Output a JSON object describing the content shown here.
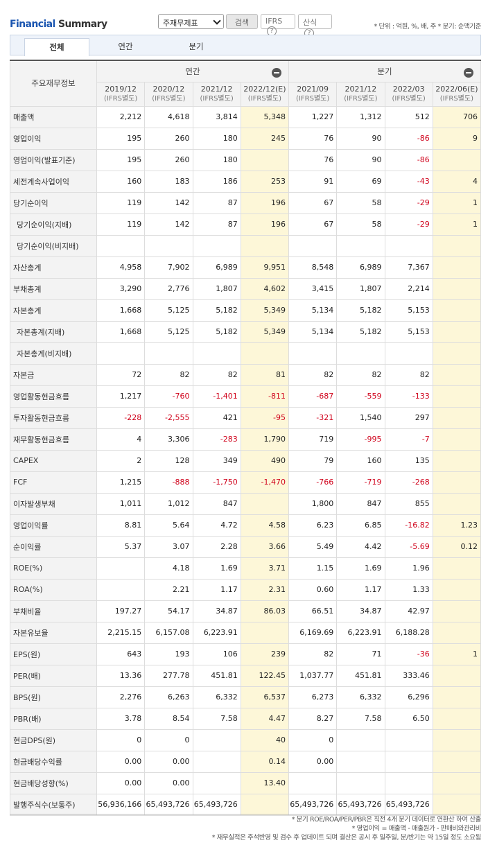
{
  "header": {
    "title_a": "Financial",
    "title_b": "Summary",
    "select_value": "주재무제표",
    "search_label": "검색",
    "ifrs_label": "IFRS",
    "formula_label": "산식",
    "help_glyph": "?",
    "unit_text": "* 단위 : 억원, %, 배, 주   * 분기: 순액기준"
  },
  "tabs": [
    "전체",
    "연간",
    "분기"
  ],
  "table": {
    "corner": "주요재무정보",
    "group_annual": "연간",
    "group_quarter": "분기",
    "columns": [
      {
        "period": "2019/12",
        "basis": "(IFRS별도)"
      },
      {
        "period": "2020/12",
        "basis": "(IFRS별도)"
      },
      {
        "period": "2021/12",
        "basis": "(IFRS별도)"
      },
      {
        "period": "2022/12(E)",
        "basis": "(IFRS별도)"
      },
      {
        "period": "2021/09",
        "basis": "(IFRS별도)"
      },
      {
        "period": "2021/12",
        "basis": "(IFRS별도)"
      },
      {
        "period": "2022/03",
        "basis": "(IFRS별도)"
      },
      {
        "period": "2022/06(E)",
        "basis": "(IFRS별도)"
      }
    ],
    "rows": [
      {
        "label": "매출액",
        "values": [
          "2,212",
          "4,618",
          "3,814",
          "5,348",
          "1,227",
          "1,312",
          "512",
          "706"
        ]
      },
      {
        "label": "영업이익",
        "values": [
          "195",
          "260",
          "180",
          "245",
          "76",
          "90",
          "-86",
          "9"
        ]
      },
      {
        "label": "영업이익(발표기준)",
        "values": [
          "195",
          "260",
          "180",
          "",
          "76",
          "90",
          "-86",
          ""
        ]
      },
      {
        "label": "세전계속사업이익",
        "values": [
          "160",
          "183",
          "186",
          "253",
          "91",
          "69",
          "-43",
          "4"
        ]
      },
      {
        "label": "당기순이익",
        "values": [
          "119",
          "142",
          "87",
          "196",
          "67",
          "58",
          "-29",
          "1"
        ]
      },
      {
        "label": "당기순이익(지배)",
        "values": [
          "119",
          "142",
          "87",
          "196",
          "67",
          "58",
          "-29",
          "1"
        ]
      },
      {
        "label": "당기순이익(비지배)",
        "values": [
          "",
          "",
          "",
          "",
          "",
          "",
          "",
          ""
        ]
      },
      {
        "label": "자산총계",
        "values": [
          "4,958",
          "7,902",
          "6,989",
          "9,951",
          "8,548",
          "6,989",
          "7,367",
          ""
        ]
      },
      {
        "label": "부채총계",
        "values": [
          "3,290",
          "2,776",
          "1,807",
          "4,602",
          "3,415",
          "1,807",
          "2,214",
          ""
        ]
      },
      {
        "label": "자본총계",
        "values": [
          "1,668",
          "5,125",
          "5,182",
          "5,349",
          "5,134",
          "5,182",
          "5,153",
          ""
        ]
      },
      {
        "label": "자본총계(지배)",
        "values": [
          "1,668",
          "5,125",
          "5,182",
          "5,349",
          "5,134",
          "5,182",
          "5,153",
          ""
        ]
      },
      {
        "label": "자본총계(비지배)",
        "values": [
          "",
          "",
          "",
          "",
          "",
          "",
          "",
          ""
        ]
      },
      {
        "label": "자본금",
        "values": [
          "72",
          "82",
          "82",
          "81",
          "82",
          "82",
          "82",
          ""
        ]
      },
      {
        "label": "영업활동현금흐름",
        "values": [
          "1,217",
          "-760",
          "-1,401",
          "-811",
          "-687",
          "-559",
          "-133",
          ""
        ]
      },
      {
        "label": "투자활동현금흐름",
        "values": [
          "-228",
          "-2,555",
          "421",
          "-95",
          "-321",
          "1,540",
          "297",
          ""
        ]
      },
      {
        "label": "재무활동현금흐름",
        "values": [
          "4",
          "3,306",
          "-283",
          "1,790",
          "719",
          "-995",
          "-7",
          ""
        ]
      },
      {
        "label": "CAPEX",
        "values": [
          "2",
          "128",
          "349",
          "490",
          "79",
          "160",
          "135",
          ""
        ]
      },
      {
        "label": "FCF",
        "values": [
          "1,215",
          "-888",
          "-1,750",
          "-1,470",
          "-766",
          "-719",
          "-268",
          ""
        ]
      },
      {
        "label": "이자발생부채",
        "values": [
          "1,011",
          "1,012",
          "847",
          "",
          "1,800",
          "847",
          "855",
          ""
        ]
      },
      {
        "label": "영업이익률",
        "values": [
          "8.81",
          "5.64",
          "4.72",
          "4.58",
          "6.23",
          "6.85",
          "-16.82",
          "1.23"
        ]
      },
      {
        "label": "순이익률",
        "values": [
          "5.37",
          "3.07",
          "2.28",
          "3.66",
          "5.49",
          "4.42",
          "-5.69",
          "0.12"
        ]
      },
      {
        "label": "ROE(%)",
        "values": [
          "",
          "4.18",
          "1.69",
          "3.71",
          "1.15",
          "1.69",
          "1.96",
          ""
        ]
      },
      {
        "label": "ROA(%)",
        "values": [
          "",
          "2.21",
          "1.17",
          "2.31",
          "0.60",
          "1.17",
          "1.33",
          ""
        ]
      },
      {
        "label": "부채비율",
        "values": [
          "197.27",
          "54.17",
          "34.87",
          "86.03",
          "66.51",
          "34.87",
          "42.97",
          ""
        ]
      },
      {
        "label": "자본유보율",
        "values": [
          "2,215.15",
          "6,157.08",
          "6,223.91",
          "",
          "6,169.69",
          "6,223.91",
          "6,188.28",
          ""
        ]
      },
      {
        "label": "EPS(원)",
        "values": [
          "643",
          "193",
          "106",
          "239",
          "82",
          "71",
          "-36",
          "1"
        ]
      },
      {
        "label": "PER(배)",
        "values": [
          "13.36",
          "277.78",
          "451.81",
          "122.45",
          "1,037.77",
          "451.81",
          "333.46",
          ""
        ]
      },
      {
        "label": "BPS(원)",
        "values": [
          "2,276",
          "6,263",
          "6,332",
          "6,537",
          "6,273",
          "6,332",
          "6,296",
          ""
        ]
      },
      {
        "label": "PBR(배)",
        "values": [
          "3.78",
          "8.54",
          "7.58",
          "4.47",
          "8.27",
          "7.58",
          "6.50",
          ""
        ]
      },
      {
        "label": "현금DPS(원)",
        "values": [
          "0",
          "0",
          "",
          "40",
          "0",
          "",
          "",
          ""
        ]
      },
      {
        "label": "현금배당수익률",
        "values": [
          "0.00",
          "0.00",
          "",
          "0.14",
          "0.00",
          "",
          "",
          ""
        ]
      },
      {
        "label": "현금배당성향(%)",
        "values": [
          "0.00",
          "0.00",
          "",
          "13.40",
          "",
          "",
          "",
          ""
        ]
      },
      {
        "label": "발행주식수(보통주)",
        "values": [
          "56,936,166",
          "65,493,726",
          "65,493,726",
          "",
          "65,493,726",
          "65,493,726",
          "65,493,726",
          ""
        ]
      }
    ]
  },
  "notes": [
    "* 분기 ROE/ROA/PER/PBR은 직전 4개 분기 데이터로 연환산 하여 산출",
    "* 영업이익 = 매출액 - 매출원가 - 판매비와관리비",
    "* 재무실적은 주석반영 및 검수 후 업데이트 되며 결산은 공시 후 일주일, 분/반기는 약 15일 정도 소요됨"
  ]
}
